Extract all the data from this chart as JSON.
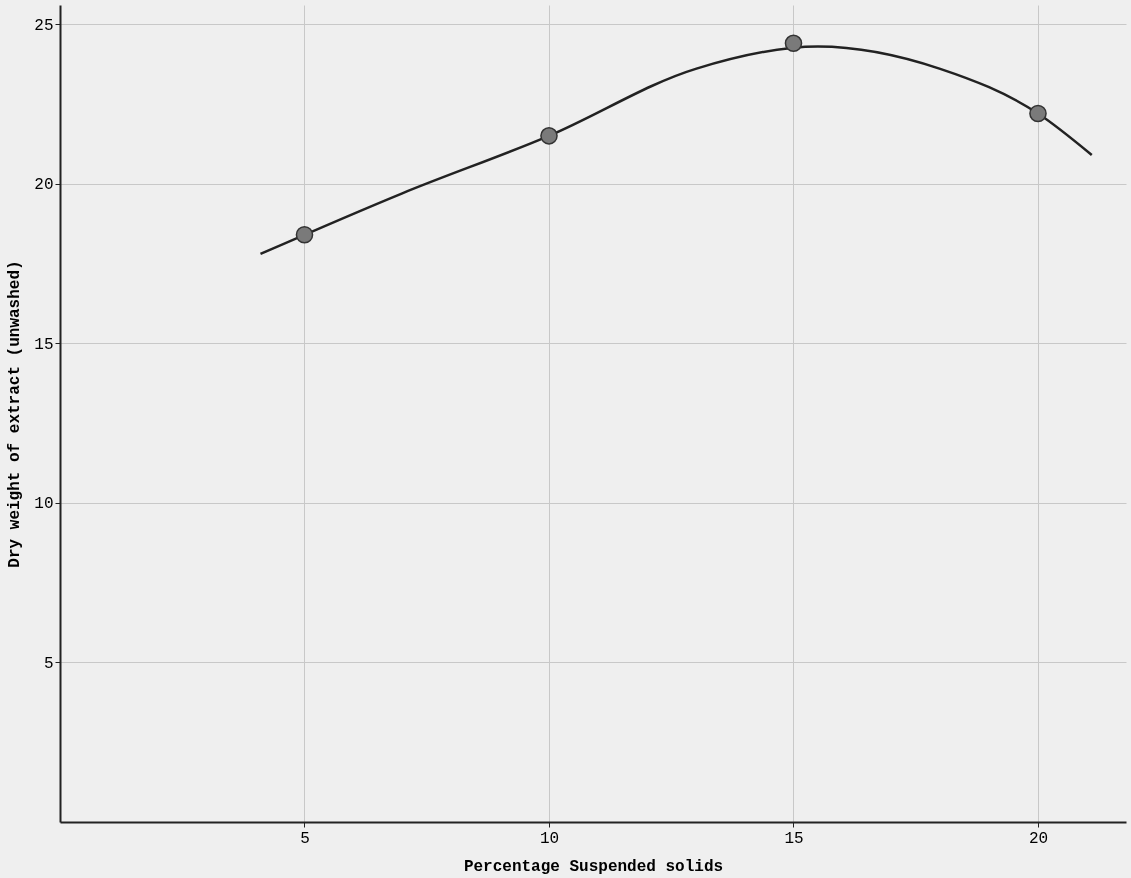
{
  "chart_data": {
    "type": "scatter",
    "xlabel": "Percentage Suspended solids",
    "ylabel": "Dry weight of extract (unwashed)",
    "xlim": [
      0,
      21.8
    ],
    "ylim": [
      0,
      25.6
    ],
    "xticks": [
      5,
      10,
      15,
      20
    ],
    "yticks": [
      5,
      10,
      15,
      20,
      25
    ],
    "grid": true,
    "series": [
      {
        "marker": "circle",
        "color": "#7a7a7a",
        "x": [
          5,
          10,
          15,
          20
        ],
        "values": [
          18.4,
          21.5,
          24.4,
          22.2
        ]
      },
      {
        "type": "line",
        "marker": "none",
        "color": "#222222",
        "x": [
          4.1,
          7,
          10,
          13,
          15.5,
          18,
          20,
          21.1
        ],
        "values": [
          17.8,
          19.7,
          21.5,
          23.6,
          24.3,
          23.6,
          22.2,
          20.9
        ]
      }
    ]
  }
}
